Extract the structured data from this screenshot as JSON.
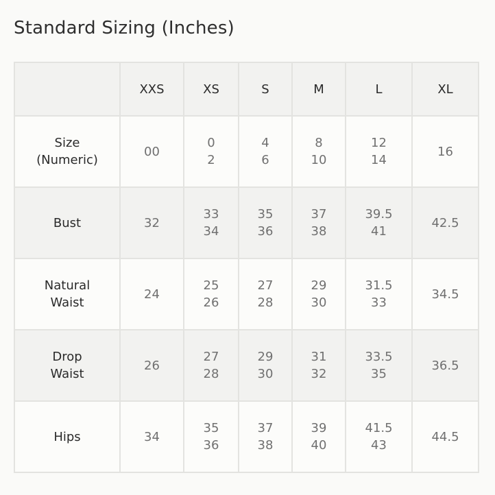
{
  "title": "Standard Sizing (Inches)",
  "columns": [
    "",
    "XXS",
    "XS",
    "S",
    "M",
    "L",
    "XL"
  ],
  "rows": [
    {
      "label": [
        "Size",
        "(Numeric)"
      ],
      "values": [
        [
          "00"
        ],
        [
          "0",
          "2"
        ],
        [
          "4",
          "6"
        ],
        [
          "8",
          "10"
        ],
        [
          "12",
          "14"
        ],
        [
          "16"
        ]
      ]
    },
    {
      "label": [
        "Bust"
      ],
      "values": [
        [
          "32"
        ],
        [
          "33",
          "34"
        ],
        [
          "35",
          "36"
        ],
        [
          "37",
          "38"
        ],
        [
          "39.5",
          "41"
        ],
        [
          "42.5"
        ]
      ]
    },
    {
      "label": [
        "Natural",
        "Waist"
      ],
      "values": [
        [
          "24"
        ],
        [
          "25",
          "26"
        ],
        [
          "27",
          "28"
        ],
        [
          "29",
          "30"
        ],
        [
          "31.5",
          "33"
        ],
        [
          "34.5"
        ]
      ]
    },
    {
      "label": [
        "Drop",
        "Waist"
      ],
      "values": [
        [
          "26"
        ],
        [
          "27",
          "28"
        ],
        [
          "29",
          "30"
        ],
        [
          "31",
          "32"
        ],
        [
          "33.5",
          "35"
        ],
        [
          "36.5"
        ]
      ]
    },
    {
      "label": [
        "Hips"
      ],
      "values": [
        [
          "34"
        ],
        [
          "35",
          "36"
        ],
        [
          "37",
          "38"
        ],
        [
          "39",
          "40"
        ],
        [
          "41.5",
          "43"
        ],
        [
          "44.5"
        ]
      ]
    }
  ]
}
